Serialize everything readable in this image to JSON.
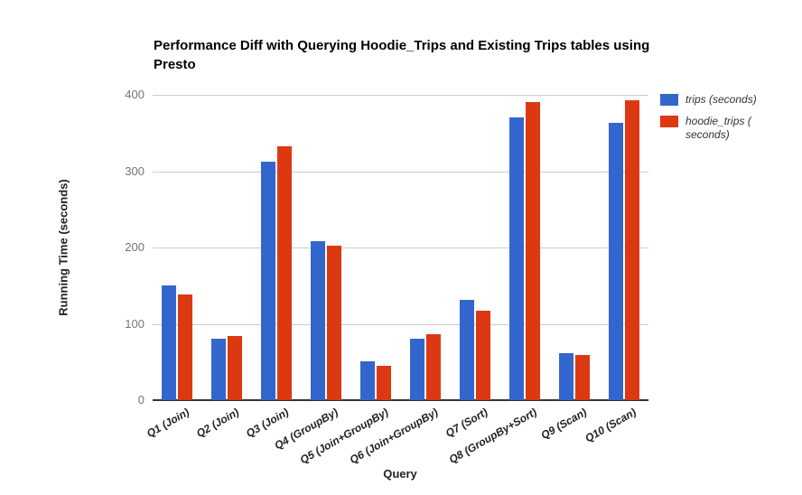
{
  "chart_data": {
    "type": "bar",
    "title": "Performance Diff with Querying Hoodie_Trips and Existing Trips tables using Presto",
    "xlabel": "Query",
    "ylabel": "Running Time (seconds)",
    "categories": [
      "Q1 (Join)",
      "Q2 (Join)",
      "Q3 (Join)",
      "Q4 (GroupBy)",
      "Q5 (Join+GroupBy)",
      "Q6 (Join+GroupBy)",
      "Q7 (Sort)",
      "Q8 (GroupBy+Sort)",
      "Q9 (Scan)",
      "Q10 (Scan)"
    ],
    "series": [
      {
        "name": "trips (seconds)",
        "color": "#3366CC",
        "values": [
          150,
          81,
          313,
          208,
          51,
          81,
          131,
          371,
          61,
          363
        ]
      },
      {
        "name": "hoodie_trips ( seconds)",
        "color": "#DC3912",
        "values": [
          139,
          84,
          332,
          202,
          45,
          86,
          117,
          390,
          59,
          393
        ]
      }
    ],
    "ylim": [
      0,
      400
    ],
    "yticks": [
      0,
      100,
      200,
      300,
      400
    ],
    "grid": true,
    "legend_position": "right",
    "colors": {
      "background": "#ffffff",
      "gridline": "#cccccc",
      "axis_line": "#333333",
      "tick_label": "#757575",
      "category_label": "#222222",
      "axis_title": "#222222",
      "legend_text": "#333333",
      "title_text": "#000000"
    }
  }
}
